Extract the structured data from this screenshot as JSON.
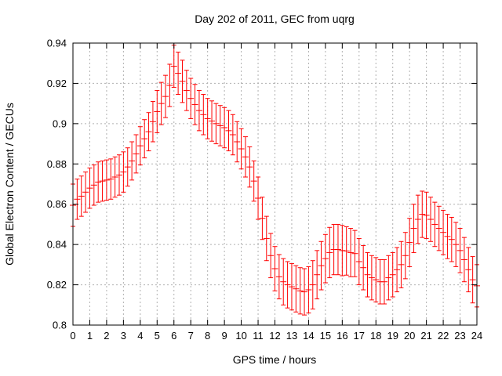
{
  "title": "Day 202 of 2011, GEC from uqrg",
  "x_axis": {
    "label": "GPS time / hours",
    "tick_labels": [
      "0",
      "1",
      "2",
      "3",
      "4",
      "5",
      "6",
      "7",
      "8",
      "9",
      "10",
      "11",
      "12",
      "13",
      "14",
      "15",
      "16",
      "17",
      "18",
      "19",
      "20",
      "21",
      "22",
      "23",
      "24"
    ],
    "tick_values": [
      0,
      1,
      2,
      3,
      4,
      5,
      6,
      7,
      8,
      9,
      10,
      11,
      12,
      13,
      14,
      15,
      16,
      17,
      18,
      19,
      20,
      21,
      22,
      23,
      24
    ]
  },
  "y_axis": {
    "label": "Global Electron Content / GECUs",
    "tick_labels": [
      "0.8",
      "0.82",
      "0.84",
      "0.86",
      "0.88",
      "0.9",
      "0.92",
      "0.94"
    ],
    "tick_values": [
      0.8,
      0.82,
      0.84,
      0.86,
      0.88,
      0.9,
      0.92,
      0.94
    ]
  },
  "colors": {
    "series": "#ff0000",
    "grid": "#b0b0b0",
    "axis": "#000000",
    "background": "#ffffff",
    "text": "#000000"
  },
  "chart_data": {
    "type": "errorbar-line",
    "title": "Day 202 of 2011, GEC from uqrg",
    "xlabel": "GPS time / hours",
    "ylabel": "Global Electron Content / GECUs",
    "xlim": [
      0,
      24
    ],
    "ylim": [
      0.8,
      0.94
    ],
    "grid": true,
    "legend": false,
    "series_name": "GEC from uqrg",
    "series_color": "#ff0000",
    "x": [
      0,
      0.25,
      0.5,
      0.75,
      1,
      1.25,
      1.5,
      1.75,
      2,
      2.25,
      2.5,
      2.75,
      3,
      3.25,
      3.5,
      3.75,
      4,
      4.25,
      4.5,
      4.75,
      5,
      5.25,
      5.5,
      5.75,
      6,
      6.25,
      6.5,
      6.75,
      7,
      7.25,
      7.5,
      7.75,
      8,
      8.25,
      8.5,
      8.75,
      9,
      9.25,
      9.5,
      9.75,
      10,
      10.25,
      10.5,
      10.75,
      11,
      11.25,
      11.5,
      11.75,
      12,
      12.25,
      12.5,
      12.75,
      13,
      13.25,
      13.5,
      13.75,
      14,
      14.25,
      14.5,
      14.75,
      15,
      15.25,
      15.5,
      15.75,
      16,
      16.25,
      16.5,
      16.75,
      17,
      17.25,
      17.5,
      17.75,
      18,
      18.25,
      18.5,
      18.75,
      19,
      19.25,
      19.5,
      19.75,
      20,
      20.25,
      20.5,
      20.75,
      21,
      21.25,
      21.5,
      21.75,
      22,
      22.25,
      22.5,
      22.75,
      23,
      23.25,
      23.5,
      23.75,
      24
    ],
    "y": [
      0.8595,
      0.8625,
      0.864,
      0.866,
      0.868,
      0.8695,
      0.871,
      0.8715,
      0.872,
      0.8725,
      0.8735,
      0.8745,
      0.876,
      0.8785,
      0.8815,
      0.885,
      0.889,
      0.8925,
      0.896,
      0.901,
      0.906,
      0.91,
      0.9135,
      0.919,
      0.9285,
      0.925,
      0.921,
      0.9165,
      0.9125,
      0.9095,
      0.9065,
      0.9045,
      0.9025,
      0.9013,
      0.9,
      0.899,
      0.898,
      0.8965,
      0.8945,
      0.891,
      0.8875,
      0.8835,
      0.8785,
      0.8715,
      0.863,
      0.853,
      0.843,
      0.8345,
      0.828,
      0.824,
      0.8215,
      0.82,
      0.819,
      0.818,
      0.817,
      0.8165,
      0.8175,
      0.82,
      0.825,
      0.8295,
      0.833,
      0.836,
      0.8375,
      0.8375,
      0.837,
      0.8368,
      0.836,
      0.8355,
      0.8315,
      0.8285,
      0.825,
      0.8235,
      0.8225,
      0.8215,
      0.8215,
      0.8235,
      0.825,
      0.8275,
      0.83,
      0.8345,
      0.841,
      0.848,
      0.8525,
      0.855,
      0.8545,
      0.8525,
      0.85,
      0.848,
      0.846,
      0.844,
      0.8425,
      0.84,
      0.837,
      0.8325,
      0.8275,
      0.8225,
      0.8195
    ],
    "yerr": [
      0.0105,
      0.01,
      0.01,
      0.01,
      0.01,
      0.01,
      0.01,
      0.01,
      0.01,
      0.01,
      0.01,
      0.01,
      0.01,
      0.0095,
      0.0095,
      0.0095,
      0.0095,
      0.0095,
      0.0095,
      0.01,
      0.0105,
      0.0105,
      0.0105,
      0.0105,
      0.0105,
      0.0105,
      0.0105,
      0.01,
      0.01,
      0.01,
      0.01,
      0.01,
      0.01,
      0.01,
      0.01,
      0.01,
      0.01,
      0.01,
      0.01,
      0.01,
      0.01,
      0.01,
      0.01,
      0.01,
      0.0105,
      0.0105,
      0.011,
      0.011,
      0.011,
      0.011,
      0.0115,
      0.0115,
      0.0115,
      0.0115,
      0.0115,
      0.0115,
      0.0115,
      0.012,
      0.012,
      0.012,
      0.012,
      0.0125,
      0.0125,
      0.0125,
      0.0125,
      0.012,
      0.012,
      0.0115,
      0.0115,
      0.011,
      0.011,
      0.011,
      0.011,
      0.011,
      0.011,
      0.011,
      0.011,
      0.011,
      0.0115,
      0.0115,
      0.012,
      0.012,
      0.012,
      0.0115,
      0.0115,
      0.011,
      0.011,
      0.011,
      0.011,
      0.011,
      0.011,
      0.011,
      0.011,
      0.011,
      0.011,
      0.0115,
      0.0105
    ]
  }
}
